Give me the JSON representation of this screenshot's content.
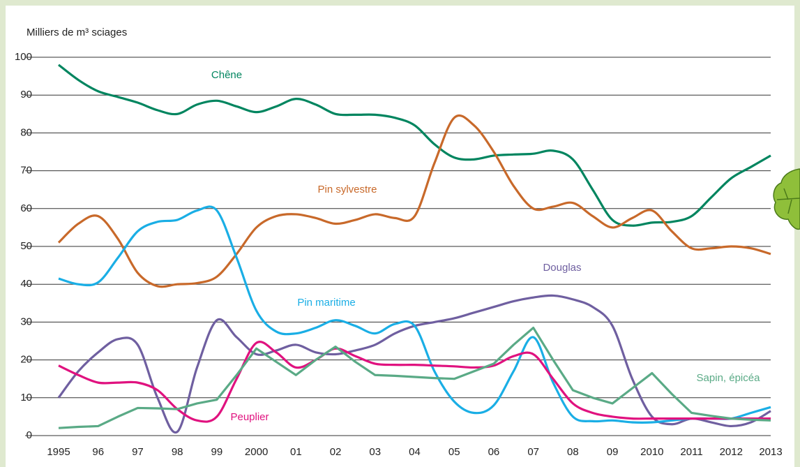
{
  "chart_data": {
    "type": "line",
    "title": "Milliers de m³ sciages",
    "x": [
      1995,
      1995.5,
      1996,
      1996.5,
      1997,
      1997.5,
      1998,
      1998.5,
      1999,
      1999.5,
      2000,
      2000.5,
      2001,
      2001.5,
      2002,
      2002.5,
      2003,
      2003.5,
      2004,
      2004.5,
      2005,
      2005.5,
      2006,
      2006.5,
      2007,
      2007.5,
      2008,
      2008.5,
      2009,
      2009.5,
      2010,
      2010.5,
      2011,
      2011.5,
      2012,
      2012.5,
      2013
    ],
    "xlim": [
      1995,
      2013
    ],
    "xticks": [
      1995,
      {
        "value": 1996,
        "label": "96"
      },
      {
        "value": 1997,
        "label": "97"
      },
      {
        "value": 1998,
        "label": "98"
      },
      {
        "value": 1999,
        "label": "99"
      },
      2000,
      {
        "value": 2001,
        "label": "01"
      },
      {
        "value": 2002,
        "label": "02"
      },
      {
        "value": 2003,
        "label": "03"
      },
      {
        "value": 2004,
        "label": "04"
      },
      {
        "value": 2005,
        "label": "05"
      },
      {
        "value": 2006,
        "label": "06"
      },
      {
        "value": 2007,
        "label": "07"
      },
      {
        "value": 2008,
        "label": "08"
      },
      {
        "value": 2009,
        "label": "09"
      },
      2010,
      2011,
      2012,
      2013
    ],
    "ylim": [
      0,
      100
    ],
    "yticks": [
      0,
      10,
      20,
      30,
      40,
      50,
      60,
      70,
      80,
      90,
      100
    ],
    "grid": true,
    "series": [
      {
        "name": "Chêne",
        "color": "#00855f",
        "smooth": true,
        "values": [
          98,
          94,
          91,
          89.5,
          88,
          86,
          85,
          87.5,
          88.5,
          87,
          85.5,
          87,
          89,
          87.5,
          85,
          84.8,
          84.8,
          84,
          82,
          77,
          73.5,
          73,
          74,
          74.3,
          74.5,
          75.3,
          73,
          65,
          57,
          55.5,
          56.3,
          56.5,
          58,
          63,
          68,
          71,
          74
        ]
      },
      {
        "name": "Pin sylvestre",
        "color": "#c8692a",
        "smooth": true,
        "values": [
          51,
          56,
          58,
          52,
          43,
          39.5,
          40,
          40.3,
          42,
          48,
          55,
          58,
          58.5,
          57.5,
          56,
          57,
          58.5,
          57.5,
          58,
          72,
          84,
          82,
          75,
          66,
          60,
          60.5,
          61.5,
          58,
          55,
          57.5,
          59.5,
          54,
          49.5,
          49.5,
          50,
          49.5,
          48
        ]
      },
      {
        "name": "Douglas",
        "color": "#6f5fa0",
        "smooth": true,
        "values": [
          10,
          17,
          22,
          25.5,
          24,
          10,
          1,
          18,
          30.5,
          26,
          21.5,
          22.5,
          24,
          22,
          21.5,
          22.5,
          24,
          27,
          29,
          30,
          31,
          32.5,
          34,
          35.5,
          36.5,
          37,
          36,
          34,
          29,
          15,
          5,
          3,
          4.5,
          3.5,
          2.5,
          3.5,
          6.5
        ]
      },
      {
        "name": "Pin maritime",
        "color": "#1aaee5",
        "smooth": true,
        "values": [
          41.5,
          40,
          40.5,
          47,
          54,
          56.5,
          57,
          59.5,
          59.5,
          47,
          33,
          27.5,
          27,
          28.5,
          30.5,
          29,
          27,
          29.5,
          29,
          17,
          9,
          6,
          8,
          17,
          26,
          14,
          5,
          3.8,
          4,
          3.5,
          3.5,
          4,
          4.5,
          4.5,
          4.5,
          6,
          7.5
        ]
      },
      {
        "name": "Peuplier",
        "color": "#e0127f",
        "smooth": true,
        "values": [
          18.5,
          16,
          14,
          14,
          14,
          12,
          7,
          4,
          5,
          15,
          24.5,
          22,
          18,
          20,
          23,
          21,
          19,
          18.7,
          18.7,
          18.5,
          18.3,
          18,
          18.5,
          21,
          21.5,
          15,
          8.5,
          6,
          5,
          4.5,
          4.5,
          4.5,
          4.5,
          4.5,
          4.5,
          4.5,
          4.5
        ]
      },
      {
        "name": "Sapin, épicéa",
        "color": "#5aaa86",
        "smooth": false,
        "values": [
          2,
          2.3,
          2.5,
          5,
          7.3,
          7.2,
          7,
          8.5,
          9.5,
          16,
          23,
          19.5,
          16,
          20,
          23.5,
          19.5,
          16,
          15.8,
          15.5,
          15.2,
          15,
          17,
          19,
          24,
          28.5,
          20,
          12,
          10,
          8.5,
          12.5,
          16.5,
          11,
          6,
          5.2,
          4.5,
          4.2,
          4
        ]
      }
    ]
  }
}
